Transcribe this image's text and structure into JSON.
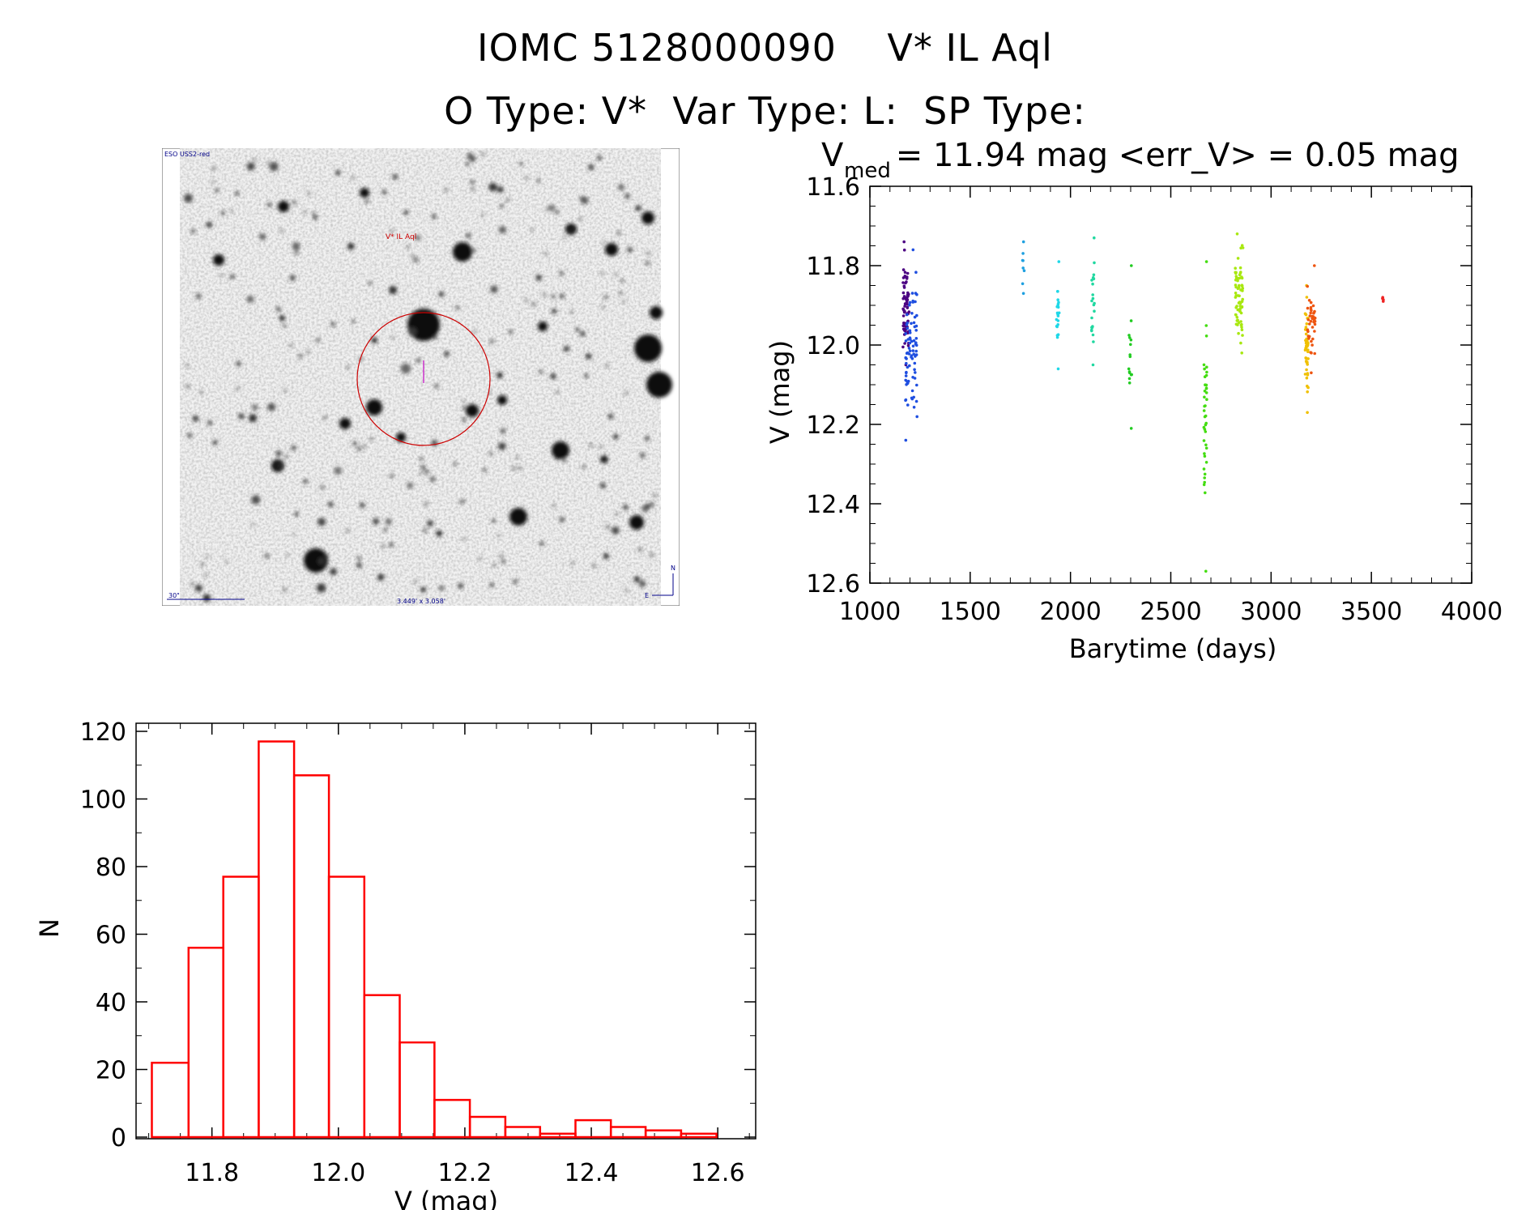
{
  "header": {
    "line1": "IOMC 5128000090    V* IL Aql",
    "line2": "O Type: V*  Var Type: L:  SP Type:"
  },
  "finder_chart": {
    "survey_label": "ESO USS2-red",
    "object_label": "V* IL Aql",
    "scale_label": "30\"",
    "fov_label": "3.449' x 3.058'",
    "north_label": "N",
    "east_label": "E",
    "circle_color": "#cc0000",
    "label_color_object": "#cc0000",
    "label_color_info": "#000088"
  },
  "chart_data": [
    {
      "type": "scatter",
      "title_main": "V",
      "title_sub": "med",
      "title_rest": " = 11.94 mag <err_V> = 0.05 mag",
      "xlabel": "Barytime (days)",
      "ylabel": "V (mag)",
      "xlim": [
        1000,
        4000
      ],
      "ylim": [
        12.6,
        11.6
      ],
      "x_ticks": [
        "1000",
        "1500",
        "2000",
        "2500",
        "3000",
        "3500",
        "4000"
      ],
      "y_ticks": [
        "11.6",
        "11.8",
        "12.0",
        "12.2",
        "12.4",
        "12.6"
      ],
      "clusters": [
        {
          "x_start": 1165,
          "x_end": 1195,
          "v_min": 11.74,
          "v_max": 12.05,
          "n": 70,
          "color": "#4b0082"
        },
        {
          "x_start": 1175,
          "x_end": 1235,
          "v_min": 11.76,
          "v_max": 12.24,
          "n": 80,
          "color": "#1f4fe0"
        },
        {
          "x_start": 1760,
          "x_end": 1770,
          "v_min": 11.74,
          "v_max": 11.87,
          "n": 8,
          "color": "#1fa0e0"
        },
        {
          "x_start": 1930,
          "x_end": 1945,
          "v_min": 11.79,
          "v_max": 12.06,
          "n": 22,
          "color": "#1fd8e8"
        },
        {
          "x_start": 2105,
          "x_end": 2120,
          "v_min": 11.73,
          "v_max": 12.05,
          "n": 22,
          "color": "#20d8a0"
        },
        {
          "x_start": 2290,
          "x_end": 2305,
          "v_min": 11.8,
          "v_max": 12.21,
          "n": 16,
          "color": "#22cc22"
        },
        {
          "x_start": 2665,
          "x_end": 2680,
          "v_min": 11.79,
          "v_max": 12.57,
          "n": 40,
          "color": "#44dd11"
        },
        {
          "x_start": 2820,
          "x_end": 2860,
          "v_min": 11.72,
          "v_max": 12.02,
          "n": 70,
          "color": "#a8e810"
        },
        {
          "x_start": 3170,
          "x_end": 3185,
          "v_min": 11.85,
          "v_max": 12.17,
          "n": 45,
          "color": "#f0c000"
        },
        {
          "x_start": 3180,
          "x_end": 3220,
          "v_min": 11.8,
          "v_max": 12.07,
          "n": 40,
          "color": "#ee5510"
        },
        {
          "x_start": 3555,
          "x_end": 3560,
          "v_min": 11.88,
          "v_max": 11.89,
          "n": 4,
          "color": "#ee2222"
        }
      ]
    },
    {
      "type": "bar",
      "xlabel": "V (mag)",
      "ylabel": "N",
      "xlim": [
        11.68,
        12.66
      ],
      "ylim": [
        0,
        120
      ],
      "x_ticks": [
        "11.8",
        "12.0",
        "12.2",
        "12.4",
        "12.6"
      ],
      "y_ticks": [
        "0",
        "20",
        "40",
        "60",
        "80",
        "100",
        "120"
      ],
      "bin_edges": [
        11.705,
        11.763,
        11.818,
        11.874,
        11.93,
        11.985,
        12.041,
        12.097,
        12.152,
        12.208,
        12.264,
        12.319,
        12.375,
        12.431,
        12.486,
        12.542,
        12.598
      ],
      "values": [
        22,
        56,
        77,
        117,
        107,
        77,
        42,
        28,
        11,
        6,
        3,
        1,
        5,
        3,
        2,
        1
      ],
      "color": "#ff0000"
    }
  ]
}
